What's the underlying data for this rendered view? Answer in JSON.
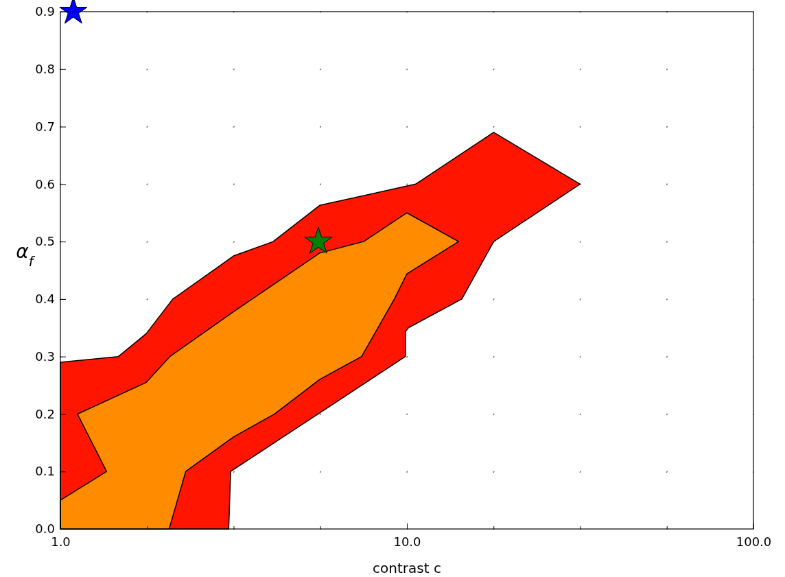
{
  "chart_data": {
    "type": "area",
    "xlabel": "contrast c",
    "ylabel": "α$_{f}$",
    "log": "x",
    "grid": true,
    "line_style": "dotted",
    "xlim": [
      1,
      100
    ],
    "ylim": [
      0,
      0.9
    ],
    "xticks": [
      {
        "value": 1,
        "label": "1.0"
      },
      {
        "value": 1.778,
        "label": null
      },
      {
        "value": 3.162,
        "label": null
      },
      {
        "value": 5.623,
        "label": null
      },
      {
        "value": 10,
        "label": "10.0"
      },
      {
        "value": 17.78,
        "label": null
      },
      {
        "value": 31.62,
        "label": null
      },
      {
        "value": 56.23,
        "label": null
      },
      {
        "value": 100,
        "label": "100.0"
      }
    ],
    "yticks": [
      {
        "value": 0,
        "label": "0.0"
      },
      {
        "value": 0.1,
        "label": "0.1"
      },
      {
        "value": 0.2,
        "label": "0.2"
      },
      {
        "value": 0.3,
        "label": "0.3"
      },
      {
        "value": 0.4,
        "label": "0.4"
      },
      {
        "value": 0.5,
        "label": "0.5"
      },
      {
        "value": 0.6,
        "label": "0.6"
      },
      {
        "value": 0.7,
        "label": "0.7"
      },
      {
        "value": 0.8,
        "label": "0.8"
      },
      {
        "value": 0.9,
        "label": "0.9"
      }
    ],
    "series": [
      {
        "color": "#ff1500",
        "x": [
          1,
          1,
          1.47,
          1.77,
          2.11,
          3.16,
          4.11,
          5.6,
          10.6,
          17.8,
          31.6,
          17.8,
          14.4,
          10.1,
          9.9,
          9.9,
          3.1,
          3.06
        ],
        "values": [
          0,
          0.29,
          0.3,
          0.34,
          0.4,
          0.475,
          0.5,
          0.563,
          0.6,
          0.69,
          0.6,
          0.5,
          0.4,
          0.35,
          0.343,
          0.3,
          0.1,
          0
        ]
      },
      {
        "color": "#ff8c00",
        "x": [
          1,
          1,
          1.36,
          1.12,
          1.77,
          2.07,
          3.16,
          5.6,
          7.5,
          10,
          14.1,
          10,
          9.2,
          7.4,
          5.6,
          4.15,
          3.16,
          2.3,
          2.06
        ],
        "values": [
          0,
          0.05,
          0.1,
          0.2,
          0.255,
          0.3,
          0.378,
          0.48,
          0.5,
          0.55,
          0.5,
          0.444,
          0.4,
          0.3,
          0.26,
          0.2,
          0.16,
          0.1,
          0
        ]
      },
      {
        "type": "scatter",
        "marker": "star",
        "color": "#0000ff",
        "x": [
          1.09
        ],
        "values": [
          0.9
        ]
      },
      {
        "type": "scatter",
        "marker": "star",
        "color": "#008000",
        "x": [
          5.55
        ],
        "values": [
          0.5
        ]
      }
    ]
  }
}
